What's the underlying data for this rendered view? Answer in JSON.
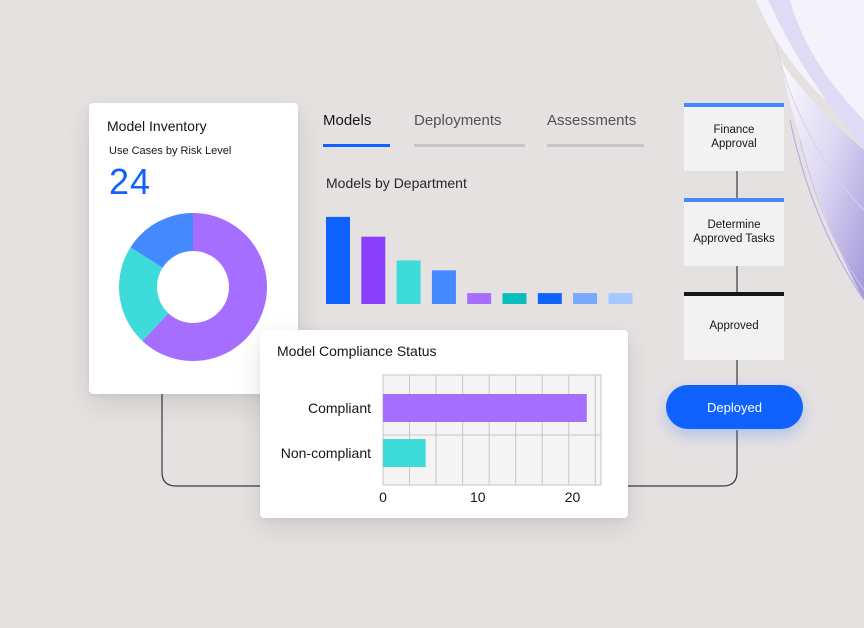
{
  "inventory": {
    "title": "Model Inventory",
    "subtitle": "Use Cases by Risk Level",
    "count": "24",
    "donut": [
      {
        "value": 62,
        "color": "#a56eff"
      },
      {
        "value": 22,
        "color": "#3ddbd9"
      },
      {
        "value": 16,
        "color": "#4589ff"
      }
    ]
  },
  "tabs": [
    {
      "label": "Models",
      "active": true
    },
    {
      "label": "Deployments",
      "active": false
    },
    {
      "label": "Assessments",
      "active": false
    }
  ],
  "department_chart": {
    "title": "Models by Department",
    "chart_data": {
      "type": "bar",
      "values": [
        88,
        68,
        44,
        34,
        11,
        11,
        11,
        11,
        11
      ],
      "colors": [
        "#0f62fe",
        "#8a3ffc",
        "#3ddbd9",
        "#4589ff",
        "#a56eff",
        "#08bdba",
        "#0f62fe",
        "#78a9ff",
        "#a6c8ff"
      ],
      "ylim": [
        0,
        100
      ]
    }
  },
  "workflow": {
    "steps": [
      {
        "label_line1": "Finance",
        "label_line2": "Approval",
        "accent": "#4589ff"
      },
      {
        "label_line1": "Determine",
        "label_line2": "Approved Tasks",
        "accent": "#4589ff"
      },
      {
        "label_line1": "Approved",
        "label_line2": "",
        "accent": "#161616"
      }
    ],
    "final_button": "Deployed"
  },
  "compliance": {
    "title": "Model Compliance Status",
    "chart_data": {
      "type": "bar",
      "orientation": "horizontal",
      "categories": [
        "Compliant",
        "Non-compliant"
      ],
      "values": [
        21.5,
        4.5
      ],
      "colors": [
        "#a56eff",
        "#3ddbd9"
      ],
      "xlim": [
        0,
        23
      ],
      "xticks": [
        0,
        10,
        20
      ],
      "grid": true
    }
  }
}
